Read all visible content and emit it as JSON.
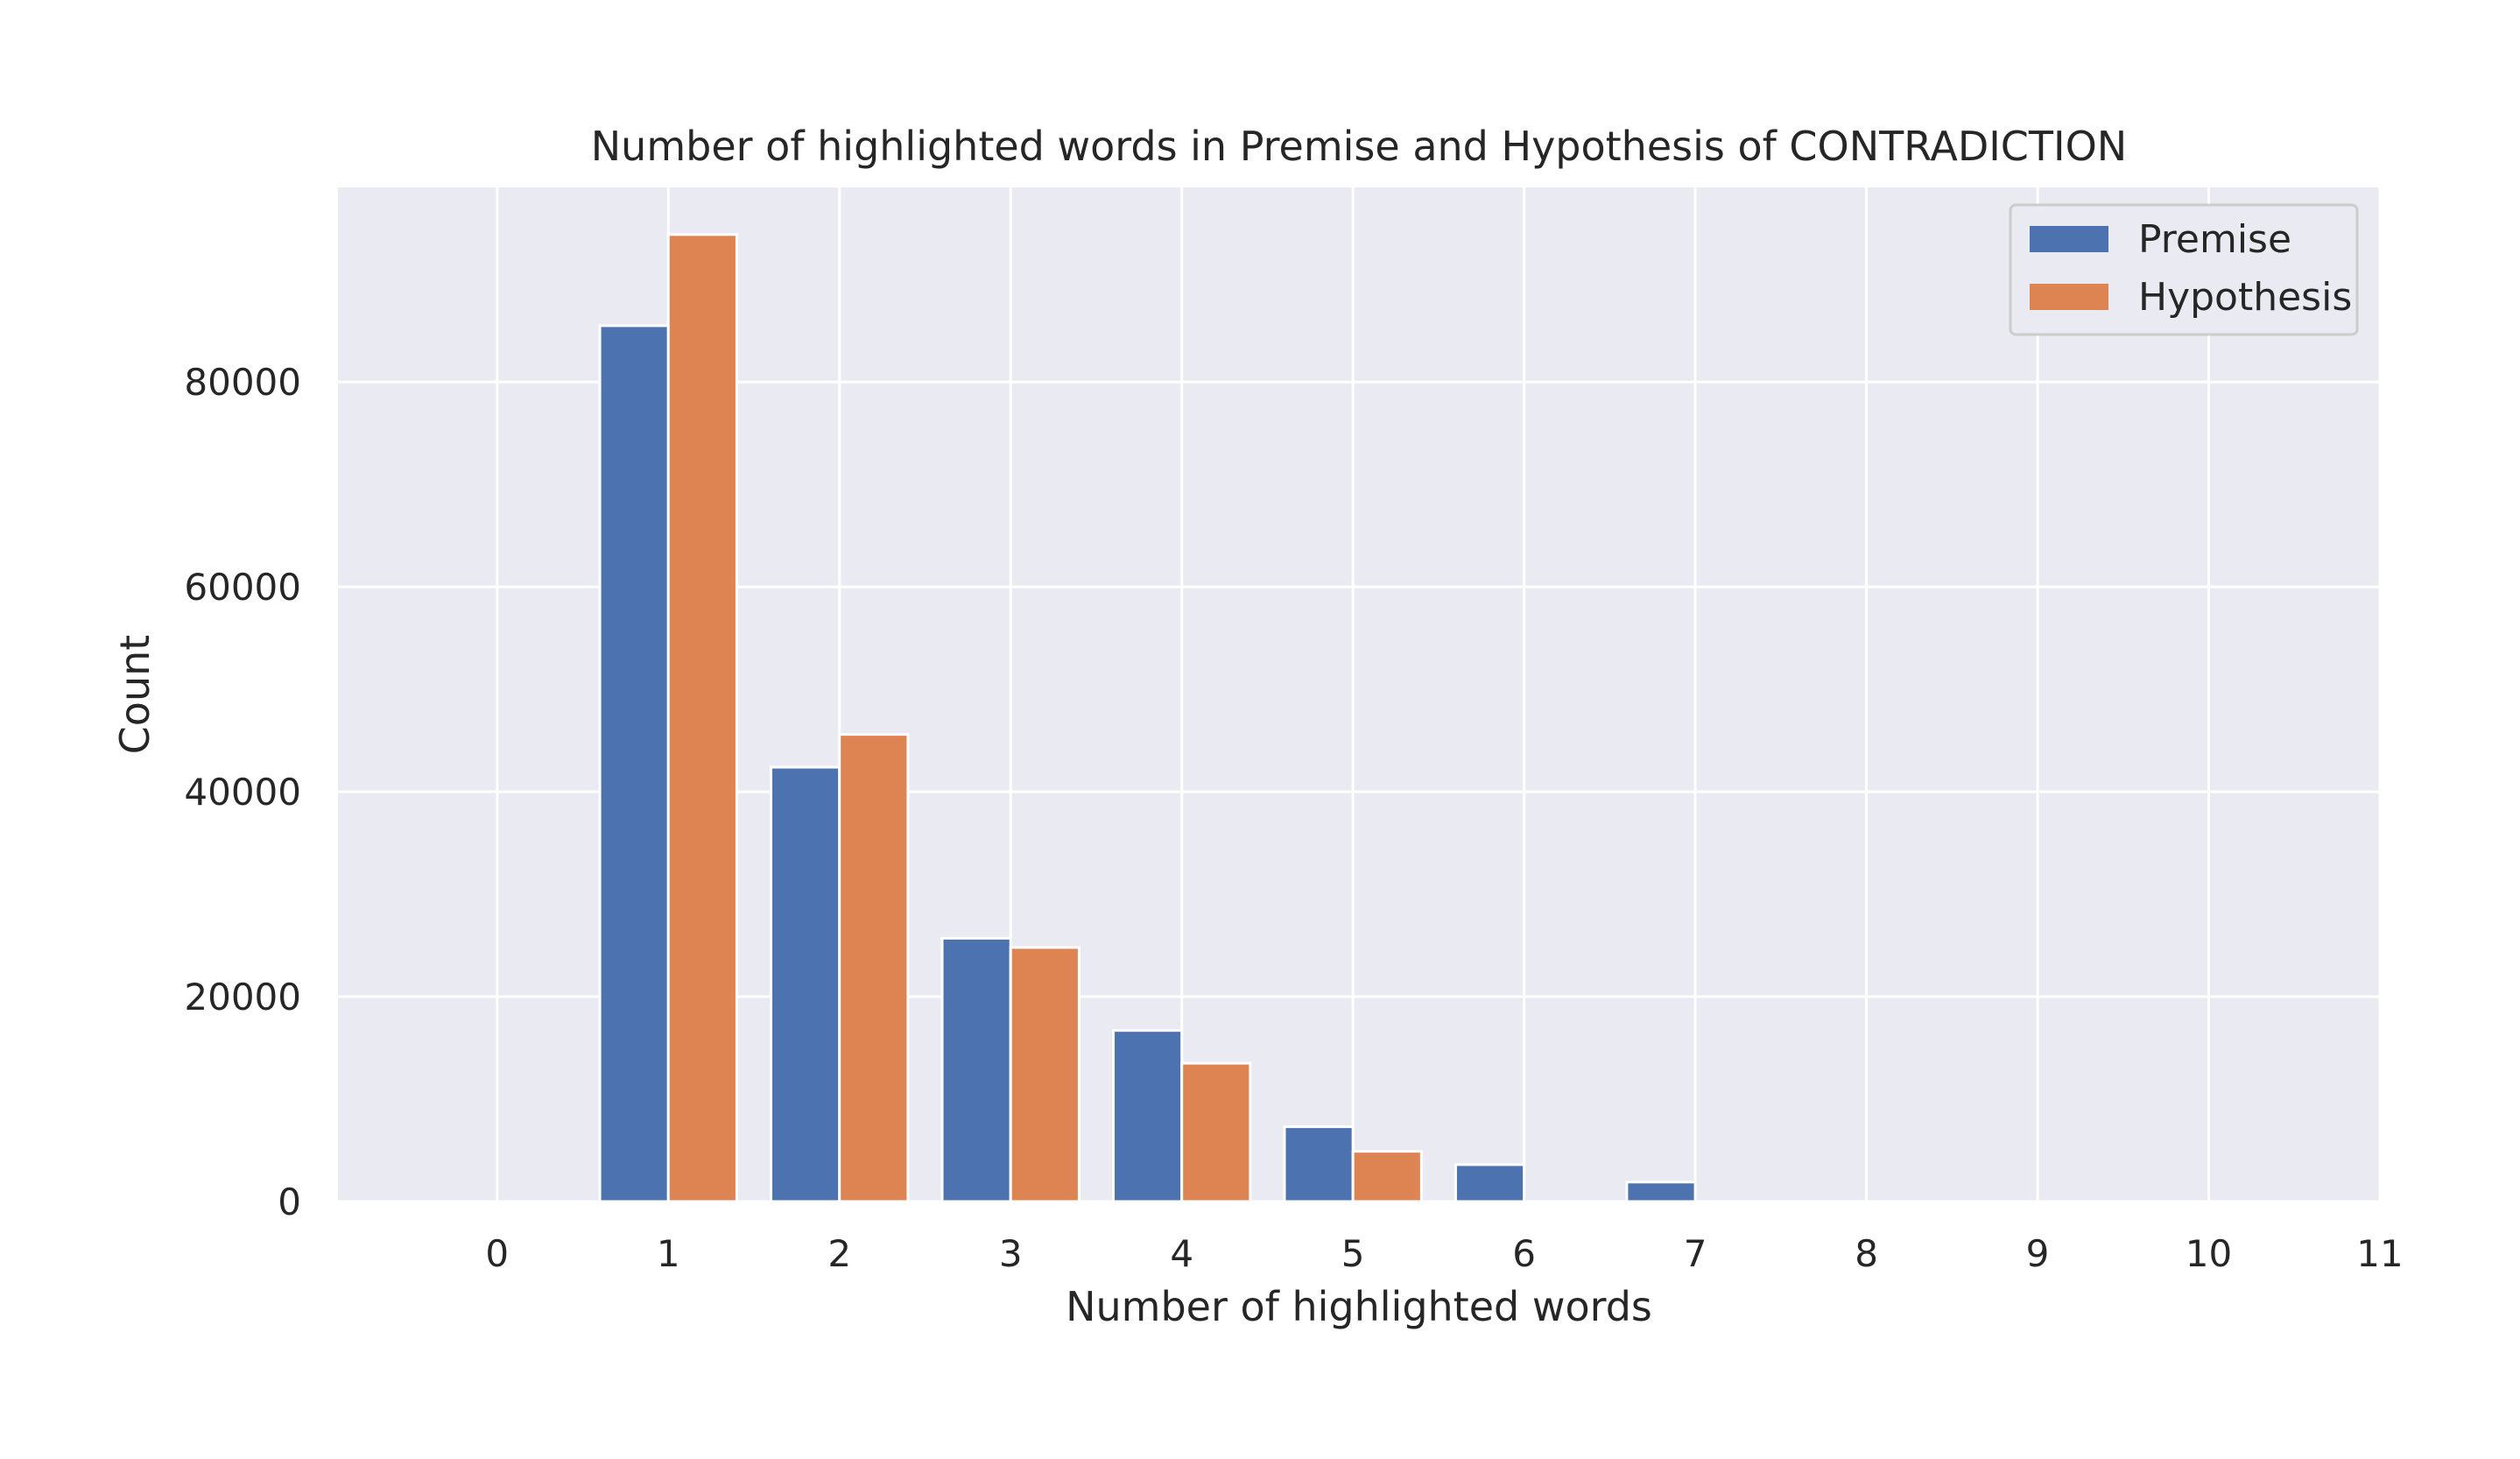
{
  "chart_data": {
    "type": "bar",
    "title": "Number of highlighted words in Premise and Hypothesis of CONTRADICTION",
    "xlabel": "Number of highlighted words",
    "ylabel": "Count",
    "categories": [
      "0",
      "1",
      "2",
      "3",
      "4",
      "5",
      "6",
      "7",
      "8",
      "9",
      "10",
      "11"
    ],
    "x": [
      0,
      1,
      2,
      3,
      4,
      5,
      6,
      7,
      8,
      9,
      10,
      11
    ],
    "series": [
      {
        "name": "Premise",
        "color": "#4c72b0",
        "values": [
          0,
          85500,
          42400,
          25700,
          16700,
          7300,
          3600,
          1900,
          0,
          0,
          0,
          0
        ]
      },
      {
        "name": "Hypothesis",
        "color": "#dd8452",
        "values": [
          0,
          94400,
          45600,
          24800,
          13500,
          4900,
          0,
          0,
          0,
          0,
          0,
          0
        ]
      }
    ],
    "xlim": [
      -0.93,
      11
    ],
    "ylim": [
      0,
      99000
    ],
    "yticks": [
      0,
      20000,
      40000,
      60000,
      80000
    ],
    "ytick_labels": [
      "0",
      "20000",
      "40000",
      "60000",
      "80000"
    ],
    "xtick_labels": [
      "0",
      "1",
      "2",
      "3",
      "4",
      "5",
      "6",
      "7",
      "8",
      "9",
      "10",
      "11"
    ],
    "grid": true,
    "legend_position": "top-right",
    "background_color": "#eaeaf2",
    "grid_color": "#ffffff"
  }
}
